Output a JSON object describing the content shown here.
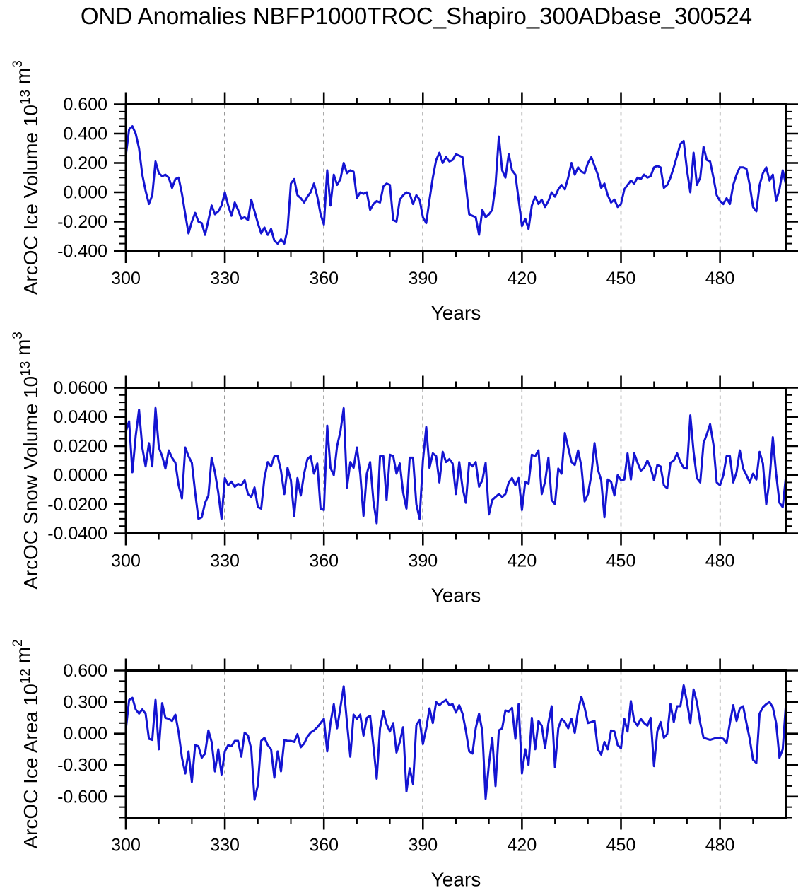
{
  "title": "OND Anomalies NBFP1000TROC_Shapiro_300ADbase_300524",
  "line_color": "#1414d2",
  "axis_color": "#000000",
  "grid_color": "#444444",
  "chart_data": [
    {
      "type": "line",
      "id": "ice-volume",
      "ylabel": "ArcOC Ice Volume 10^13 m^3",
      "ylabel_rich": [
        {
          "t": "ArcOC Ice Volume 10"
        },
        {
          "t": "13",
          "sup": true
        },
        {
          "t": " m"
        },
        {
          "t": "3",
          "sup": true
        }
      ],
      "xlabel": "Years",
      "xlim": [
        300,
        500
      ],
      "xticks": [
        300,
        330,
        360,
        390,
        420,
        450,
        480
      ],
      "xtick_labels": [
        "300",
        "330",
        "360",
        "390",
        "420",
        "450",
        "480"
      ],
      "x_minor_step": 10,
      "grid_x": [
        330,
        360,
        390,
        420,
        450,
        480
      ],
      "ylim": [
        -0.4,
        0.6
      ],
      "yticks": [
        0.6,
        0.4,
        0.2,
        0.0,
        -0.2,
        -0.4
      ],
      "ytick_labels": [
        "0.600",
        "0.400",
        "0.200",
        "0.000",
        "-0.200",
        "-0.400"
      ],
      "y_minor_step": 0.05,
      "x_start": 300,
      "x_step": 1,
      "values": [
        0.25,
        0.43,
        0.45,
        0.4,
        0.3,
        0.12,
        0.01,
        -0.08,
        -0.02,
        0.21,
        0.13,
        0.11,
        0.12,
        0.1,
        0.03,
        0.09,
        0.1,
        -0.01,
        -0.15,
        -0.28,
        -0.2,
        -0.14,
        -0.2,
        -0.21,
        -0.29,
        -0.19,
        -0.09,
        -0.15,
        -0.13,
        -0.09,
        0.0,
        -0.09,
        -0.16,
        -0.07,
        -0.12,
        -0.18,
        -0.17,
        -0.19,
        -0.05,
        -0.13,
        -0.21,
        -0.28,
        -0.24,
        -0.29,
        -0.25,
        -0.33,
        -0.35,
        -0.32,
        -0.35,
        -0.25,
        0.06,
        0.09,
        -0.02,
        -0.04,
        -0.07,
        -0.03,
        0.0,
        0.06,
        -0.03,
        -0.15,
        -0.22,
        0.15,
        -0.09,
        0.12,
        0.05,
        0.09,
        0.2,
        0.13,
        0.15,
        0.14,
        -0.04,
        0.0,
        -0.01,
        0.0,
        -0.12,
        -0.08,
        -0.06,
        -0.07,
        0.04,
        0.06,
        0.05,
        -0.19,
        -0.2,
        -0.05,
        -0.02,
        0.0,
        -0.01,
        -0.08,
        -0.02,
        -0.05,
        -0.17,
        -0.21,
        -0.05,
        0.1,
        0.22,
        0.27,
        0.2,
        0.24,
        0.21,
        0.22,
        0.26,
        0.25,
        0.24,
        0.05,
        -0.15,
        -0.16,
        -0.17,
        -0.29,
        -0.12,
        -0.17,
        -0.15,
        -0.12,
        0.05,
        0.38,
        0.15,
        0.1,
        0.26,
        0.15,
        0.12,
        -0.05,
        -0.23,
        -0.18,
        -0.25,
        -0.09,
        -0.03,
        -0.08,
        -0.05,
        -0.1,
        -0.06,
        0.0,
        -0.03,
        0.02,
        0.05,
        0.02,
        0.1,
        0.2,
        0.12,
        0.17,
        0.14,
        0.13,
        0.2,
        0.24,
        0.18,
        0.12,
        0.03,
        0.06,
        -0.02,
        -0.07,
        -0.05,
        -0.1,
        -0.08,
        0.02,
        0.05,
        0.08,
        0.06,
        0.1,
        0.09,
        0.12,
        0.1,
        0.11,
        0.17,
        0.18,
        0.17,
        0.03,
        0.05,
        0.1,
        0.17,
        0.25,
        0.33,
        0.35,
        0.15,
        0.0,
        0.27,
        0.05,
        0.1,
        0.31,
        0.22,
        0.21,
        0.1,
        -0.02,
        -0.06,
        -0.08,
        -0.04,
        -0.08,
        0.05,
        0.12,
        0.17,
        0.17,
        0.16,
        0.05,
        -0.1,
        -0.13,
        0.05,
        0.13,
        0.17,
        0.08,
        0.12,
        -0.06,
        0.02,
        0.15,
        0.05
      ]
    },
    {
      "type": "line",
      "id": "snow-volume",
      "ylabel": "ArcOC Snow Volume 10^13 m^3",
      "ylabel_rich": [
        {
          "t": "ArcOC Snow Volume 10"
        },
        {
          "t": "13",
          "sup": true
        },
        {
          "t": " m"
        },
        {
          "t": "3",
          "sup": true
        }
      ],
      "xlabel": "Years",
      "xlim": [
        300,
        500
      ],
      "xticks": [
        300,
        330,
        360,
        390,
        420,
        450,
        480
      ],
      "xtick_labels": [
        "300",
        "330",
        "360",
        "390",
        "420",
        "450",
        "480"
      ],
      "x_minor_step": 10,
      "grid_x": [
        330,
        360,
        390,
        420,
        450,
        480
      ],
      "ylim": [
        -0.04,
        0.06
      ],
      "yticks": [
        0.06,
        0.04,
        0.02,
        0.0,
        -0.02,
        -0.04
      ],
      "ytick_labels": [
        "0.0600",
        "0.0400",
        "0.0200",
        "0.0000",
        "-0.0200",
        "-0.0400"
      ],
      "y_minor_step": 0.005,
      "x_start": 300,
      "x_step": 1,
      "values": [
        0.03,
        0.037,
        0.002,
        0.027,
        0.045,
        0.019,
        0.006,
        0.022,
        0.006,
        0.046,
        0.019,
        0.013,
        0.0045,
        0.017,
        0.012,
        0.0085,
        -0.007,
        -0.016,
        0.019,
        0.013,
        0.0085,
        -0.012,
        -0.03,
        -0.029,
        -0.019,
        -0.014,
        0.012,
        0.002,
        -0.012,
        -0.03,
        -0.002,
        -0.007,
        -0.0045,
        -0.008,
        -0.006,
        -0.007,
        -0.0035,
        -0.013,
        -0.015,
        -0.0085,
        -0.022,
        -0.023,
        -0.002,
        0.009,
        0.006,
        0.013,
        0.013,
        0.003,
        -0.013,
        0.005,
        -0.0035,
        -0.028,
        -0.002,
        -0.014,
        0.001,
        0.011,
        0.013,
        0.001,
        0.008,
        -0.023,
        -0.024,
        0.034,
        0.005,
        0.0,
        0.02,
        0.03,
        0.046,
        -0.0085,
        0.009,
        0.005,
        0.019,
        0.001,
        -0.028,
        0.001,
        0.009,
        -0.018,
        -0.033,
        0.013,
        0.013,
        -0.017,
        0.014,
        0.013,
        0.001,
        0.008,
        -0.012,
        -0.023,
        0.012,
        0.012,
        -0.02,
        -0.03,
        0.01,
        0.033,
        0.005,
        0.015,
        0.013,
        -0.005,
        0.016,
        0.009,
        0.011,
        0.008,
        -0.013,
        0.009,
        -0.0085,
        -0.019,
        0.0085,
        0.006,
        0.009,
        -0.008,
        -0.0035,
        0.0085,
        -0.027,
        -0.017,
        -0.015,
        -0.013,
        -0.015,
        -0.013,
        -0.005,
        -0.002,
        -0.007,
        -0.002,
        -0.024,
        -0.0045,
        -0.006,
        0.014,
        0.013,
        0.017,
        -0.013,
        -0.0045,
        0.012,
        -0.017,
        -0.02,
        0.0045,
        0.001,
        0.029,
        0.019,
        0.009,
        0.007,
        0.017,
        0.006,
        -0.018,
        -0.013,
        0.0,
        0.022,
        0.004,
        -0.0035,
        -0.029,
        -0.003,
        -0.0045,
        -0.014,
        0.0,
        -0.0035,
        -0.003,
        0.015,
        -0.003,
        0.015,
        0.0085,
        0.003,
        0.005,
        0.01,
        0.005,
        -0.0035,
        0.007,
        0.006,
        -0.007,
        -0.009,
        0.0085,
        0.01,
        0.015,
        0.009,
        0.005,
        0.0045,
        0.041,
        0.016,
        -0.002,
        -0.005,
        0.022,
        0.028,
        0.035,
        0.021,
        -0.005,
        -0.007,
        0.0,
        0.013,
        0.013,
        -0.005,
        0.002,
        0.017,
        0.0045,
        0.0,
        -0.005,
        0.001,
        -0.003,
        0.016,
        0.008,
        -0.02,
        -0.003,
        0.026,
        0.001,
        -0.019,
        -0.022,
        0.0
      ]
    },
    {
      "type": "line",
      "id": "ice-area",
      "ylabel": "ArcOC Ice Area 10^12 m^2",
      "ylabel_rich": [
        {
          "t": "ArcOC Ice Area 10"
        },
        {
          "t": "12",
          "sup": true
        },
        {
          "t": " m"
        },
        {
          "t": "2",
          "sup": true
        }
      ],
      "xlabel": "Years",
      "xlim": [
        300,
        500
      ],
      "xticks": [
        300,
        330,
        360,
        390,
        420,
        450,
        480
      ],
      "xtick_labels": [
        "300",
        "330",
        "360",
        "390",
        "420",
        "450",
        "480"
      ],
      "x_minor_step": 10,
      "grid_x": [
        330,
        360,
        390,
        420,
        450,
        480
      ],
      "ylim": [
        -0.8,
        0.6
      ],
      "yticks": [
        0.6,
        0.3,
        0.0,
        -0.3,
        -0.6
      ],
      "ytick_labels": [
        "0.600",
        "0.300",
        "0.000",
        "-0.300",
        "-0.600"
      ],
      "y_minor_step": 0.1,
      "x_start": 300,
      "x_step": 1,
      "values": [
        0.04,
        0.32,
        0.34,
        0.23,
        0.19,
        0.23,
        0.19,
        -0.05,
        -0.06,
        0.32,
        -0.15,
        0.29,
        0.15,
        0.14,
        0.12,
        0.18,
        0.01,
        -0.23,
        -0.38,
        -0.17,
        -0.46,
        -0.11,
        -0.12,
        -0.23,
        -0.19,
        0.03,
        -0.08,
        -0.36,
        -0.15,
        -0.39,
        -0.17,
        -0.11,
        -0.12,
        -0.07,
        -0.07,
        -0.22,
        0.01,
        -0.02,
        -0.15,
        -0.63,
        -0.49,
        -0.07,
        -0.04,
        -0.11,
        -0.15,
        -0.42,
        -0.17,
        -0.36,
        -0.06,
        -0.07,
        -0.07,
        -0.08,
        -0.005,
        -0.13,
        -0.095,
        -0.03,
        0.01,
        0.03,
        0.06,
        0.1,
        0.14,
        -0.17,
        0.1,
        0.28,
        0.05,
        0.25,
        0.45,
        0.1,
        -0.22,
        0.18,
        0.14,
        0.18,
        -0.02,
        0.15,
        0.17,
        -0.12,
        -0.43,
        0.05,
        0.21,
        0.09,
        0.02,
        0.1,
        -0.18,
        -0.08,
        0.06,
        -0.55,
        -0.33,
        -0.48,
        0.08,
        0.13,
        -0.1,
        0.05,
        0.24,
        0.1,
        0.3,
        0.27,
        0.3,
        0.32,
        0.27,
        0.28,
        0.2,
        0.27,
        0.19,
        0.03,
        -0.17,
        -0.19,
        0.05,
        0.19,
        0.02,
        -0.62,
        -0.29,
        -0.04,
        -0.5,
        0.03,
        0.05,
        0.22,
        0.21,
        0.245,
        -0.05,
        0.28,
        -0.38,
        -0.15,
        -0.3,
        0.15,
        -0.15,
        0.12,
        0.075,
        -0.14,
        0.1,
        0.26,
        -0.32,
        0.05,
        0.14,
        0.11,
        0.05,
        0.14,
        0.007,
        0.22,
        0.35,
        0.245,
        0.1,
        0.11,
        0.12,
        -0.15,
        -0.2,
        -0.08,
        -0.15,
        0.03,
        0.02,
        -0.11,
        -0.14,
        0.14,
        0.02,
        0.31,
        0.12,
        0.075,
        0.14,
        0.1,
        0.075,
        0.15,
        -0.31,
        0.02,
        0.11,
        -0.04,
        -0.005,
        0.28,
        0.11,
        0.26,
        0.26,
        0.46,
        0.3,
        0.1,
        0.42,
        0.3,
        0.1,
        -0.04,
        -0.05,
        -0.06,
        -0.05,
        -0.04,
        -0.04,
        -0.05,
        -0.09,
        0.1,
        0.27,
        0.12,
        0.24,
        0.26,
        0.1,
        -0.05,
        -0.25,
        -0.28,
        0.19,
        0.25,
        0.28,
        0.3,
        0.25,
        0.1,
        -0.23,
        -0.15,
        0.3
      ]
    }
  ]
}
